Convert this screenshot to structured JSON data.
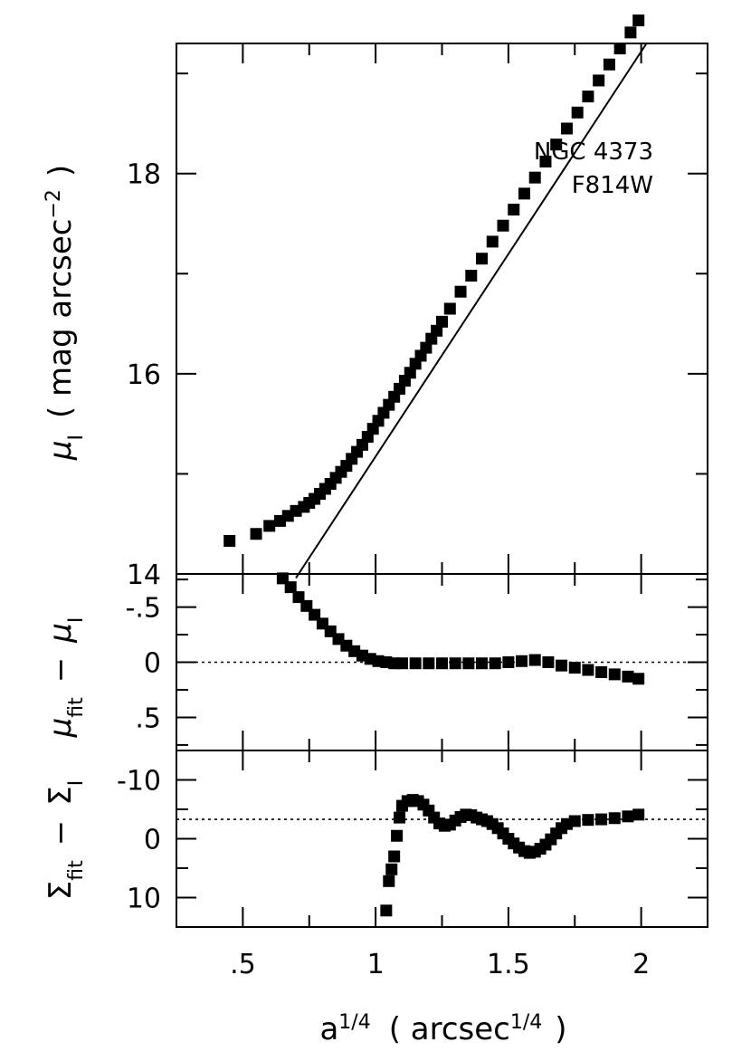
{
  "chart_data": [
    {
      "type": "scatter",
      "panel": "top",
      "annotation": [
        "NGC 4373",
        "F814W"
      ],
      "ylabel": {
        "sym": "μ",
        "sub": "I",
        "rest": "( mag arcsec",
        "sup": "−2",
        "end": ")"
      },
      "ylim": [
        19.3,
        14.0
      ],
      "xlim": [
        0.25,
        2.25
      ],
      "yticks": [
        {
          "v": 14,
          "label": "14"
        },
        {
          "v": 16,
          "label": "16"
        },
        {
          "v": 18,
          "label": "18"
        }
      ],
      "fit_line": {
        "x": [
          0.7,
          2.02
        ],
        "y": [
          13.96,
          19.3
        ]
      },
      "points": {
        "x": [
          0.45,
          0.55,
          0.6,
          0.64,
          0.67,
          0.7,
          0.73,
          0.75,
          0.77,
          0.79,
          0.81,
          0.83,
          0.85,
          0.87,
          0.89,
          0.91,
          0.93,
          0.95,
          0.97,
          0.99,
          1.01,
          1.03,
          1.05,
          1.07,
          1.09,
          1.11,
          1.13,
          1.15,
          1.17,
          1.19,
          1.21,
          1.23,
          1.25,
          1.28,
          1.32,
          1.36,
          1.4,
          1.44,
          1.48,
          1.52,
          1.56,
          1.6,
          1.64,
          1.68,
          1.72,
          1.76,
          1.8,
          1.84,
          1.88,
          1.92,
          1.96,
          1.99
        ],
        "y": [
          14.33,
          14.4,
          14.48,
          14.53,
          14.58,
          14.63,
          14.67,
          14.71,
          14.75,
          14.8,
          14.85,
          14.9,
          14.96,
          15.02,
          15.08,
          15.15,
          15.22,
          15.29,
          15.37,
          15.45,
          15.53,
          15.61,
          15.69,
          15.77,
          15.85,
          15.93,
          16.01,
          16.1,
          16.18,
          16.26,
          16.35,
          16.43,
          16.52,
          16.65,
          16.82,
          16.98,
          17.15,
          17.32,
          17.48,
          17.64,
          17.8,
          17.96,
          18.12,
          18.29,
          18.45,
          18.61,
          18.77,
          18.93,
          19.09,
          19.25,
          19.41,
          19.53
        ]
      }
    },
    {
      "type": "scatter",
      "panel": "middle",
      "ylabel": {
        "a": "μ",
        "a_sub": "fit",
        "op": "−",
        "b": "μ",
        "b_sub": "I"
      },
      "ylim": [
        -0.8,
        0.8
      ],
      "xlim": [
        0.25,
        2.25
      ],
      "yticks": [
        {
          "v": 0.5,
          "label": ".5"
        },
        {
          "v": 0,
          "label": "0"
        },
        {
          "v": -0.5,
          "label": "-.5"
        }
      ],
      "reference_line": 0,
      "points": {
        "x": [
          0.65,
          0.68,
          0.71,
          0.74,
          0.77,
          0.8,
          0.83,
          0.86,
          0.89,
          0.92,
          0.95,
          0.98,
          1.01,
          1.04,
          1.07,
          1.1,
          1.15,
          1.2,
          1.25,
          1.3,
          1.35,
          1.4,
          1.45,
          1.5,
          1.55,
          1.6,
          1.65,
          1.7,
          1.75,
          1.8,
          1.85,
          1.9,
          1.95,
          1.99
        ],
        "y": [
          -0.76,
          -0.68,
          -0.59,
          -0.51,
          -0.43,
          -0.35,
          -0.28,
          -0.21,
          -0.15,
          -0.1,
          -0.06,
          -0.03,
          -0.01,
          0.0,
          0.01,
          0.01,
          0.01,
          0.01,
          0.01,
          0.01,
          0.01,
          0.01,
          0.01,
          0.0,
          -0.01,
          -0.02,
          0.0,
          0.03,
          0.05,
          0.07,
          0.09,
          0.11,
          0.13,
          0.15
        ]
      }
    },
    {
      "type": "scatter",
      "panel": "bottom",
      "ylabel": {
        "a": "Σ",
        "a_sub": "fit",
        "op": "−",
        "b": "Σ",
        "b_sub": "I"
      },
      "ylim": [
        -15,
        15
      ],
      "xlim": [
        0.25,
        2.25
      ],
      "yticks": [
        {
          "v": 10,
          "label": "10"
        },
        {
          "v": 0,
          "label": "0"
        },
        {
          "v": -10,
          "label": "-10"
        }
      ],
      "reference_line": -3.3,
      "points": {
        "x": [
          1.04,
          1.05,
          1.06,
          1.07,
          1.08,
          1.09,
          1.1,
          1.12,
          1.14,
          1.16,
          1.18,
          1.2,
          1.22,
          1.24,
          1.26,
          1.28,
          1.3,
          1.32,
          1.34,
          1.36,
          1.38,
          1.4,
          1.42,
          1.44,
          1.46,
          1.48,
          1.5,
          1.52,
          1.54,
          1.56,
          1.58,
          1.6,
          1.62,
          1.64,
          1.66,
          1.68,
          1.7,
          1.72,
          1.75,
          1.8,
          1.85,
          1.9,
          1.95,
          1.99
        ],
        "y": [
          12.2,
          7.2,
          5.2,
          3.0,
          -0.5,
          -3.6,
          -5.6,
          -6.4,
          -6.6,
          -6.4,
          -5.8,
          -4.8,
          -3.6,
          -2.6,
          -2.2,
          -2.4,
          -3.1,
          -3.7,
          -4.1,
          -4.0,
          -3.6,
          -3.3,
          -3.0,
          -2.5,
          -1.8,
          -0.9,
          0.0,
          0.8,
          1.5,
          2.1,
          2.4,
          2.2,
          1.7,
          1.0,
          0.1,
          -0.9,
          -1.8,
          -2.5,
          -3.0,
          -3.2,
          -3.3,
          -3.5,
          -3.8,
          -4.1
        ]
      }
    }
  ],
  "x_axis": {
    "ticks": [
      {
        "v": 0.5,
        "label": ".5"
      },
      {
        "v": 1,
        "label": "1"
      },
      {
        "v": 1.5,
        "label": "1.5"
      },
      {
        "v": 2,
        "label": "2"
      }
    ],
    "title": {
      "a": "a",
      "sup1": "1/4",
      "mid": "( arcsec",
      "sup2": "1/4",
      "end": ")"
    }
  }
}
